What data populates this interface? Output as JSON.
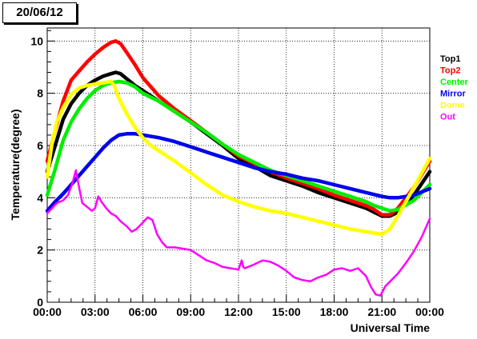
{
  "chart_data": {
    "type": "line",
    "title": "20/06/12",
    "xlabel": "Universal Time",
    "ylabel": "Temperature(degree)",
    "xlim": [
      0,
      24
    ],
    "ylim": [
      0,
      10.5
    ],
    "x_tick_values": [
      0,
      3,
      6,
      9,
      12,
      15,
      18,
      21,
      24
    ],
    "x_tick_labels": [
      "00:00",
      "03:00",
      "06:00",
      "09:00",
      "12:00",
      "15:00",
      "18:00",
      "21:00",
      "00:00"
    ],
    "y_tick_values": [
      0,
      2,
      4,
      6,
      8,
      10
    ],
    "y_tick_labels": [
      "0",
      "2",
      "4",
      "6",
      "8",
      "10"
    ],
    "grid": true,
    "legend_position": "right",
    "series": [
      {
        "name": "Top1",
        "color": "#000000",
        "points": [
          [
            0,
            5.0
          ],
          [
            0.5,
            6.0
          ],
          [
            1,
            7.0
          ],
          [
            1.5,
            7.6
          ],
          [
            2,
            8.0
          ],
          [
            2.5,
            8.3
          ],
          [
            3,
            8.5
          ],
          [
            3.5,
            8.65
          ],
          [
            4,
            8.75
          ],
          [
            4.3,
            8.8
          ],
          [
            4.6,
            8.75
          ],
          [
            5,
            8.55
          ],
          [
            5.5,
            8.3
          ],
          [
            6,
            8.1
          ],
          [
            7,
            7.7
          ],
          [
            8,
            7.3
          ],
          [
            9,
            6.9
          ],
          [
            10,
            6.45
          ],
          [
            11,
            6.0
          ],
          [
            12,
            5.5
          ],
          [
            13,
            5.2
          ],
          [
            14,
            4.85
          ],
          [
            15,
            4.65
          ],
          [
            16,
            4.45
          ],
          [
            17,
            4.2
          ],
          [
            18,
            4.0
          ],
          [
            19,
            3.8
          ],
          [
            20,
            3.6
          ],
          [
            20.5,
            3.45
          ],
          [
            21,
            3.3
          ],
          [
            21.5,
            3.3
          ],
          [
            22,
            3.45
          ],
          [
            23,
            4.1
          ],
          [
            24,
            5.0
          ]
        ]
      },
      {
        "name": "Top2",
        "color": "#ff0000",
        "points": [
          [
            0,
            5.4
          ],
          [
            0.5,
            6.6
          ],
          [
            1,
            7.7
          ],
          [
            1.5,
            8.5
          ],
          [
            2,
            8.85
          ],
          [
            2.5,
            9.2
          ],
          [
            3,
            9.5
          ],
          [
            3.5,
            9.75
          ],
          [
            4,
            9.95
          ],
          [
            4.3,
            10.0
          ],
          [
            4.6,
            9.9
          ],
          [
            5,
            9.55
          ],
          [
            5.5,
            9.1
          ],
          [
            6,
            8.6
          ],
          [
            7,
            7.9
          ],
          [
            8,
            7.4
          ],
          [
            9,
            6.95
          ],
          [
            10,
            6.5
          ],
          [
            11,
            6.05
          ],
          [
            12,
            5.6
          ],
          [
            13,
            5.3
          ],
          [
            14,
            5.0
          ],
          [
            15,
            4.75
          ],
          [
            16,
            4.55
          ],
          [
            17,
            4.35
          ],
          [
            18,
            4.1
          ],
          [
            19,
            3.9
          ],
          [
            20,
            3.7
          ],
          [
            20.5,
            3.55
          ],
          [
            21,
            3.35
          ],
          [
            21.5,
            3.35
          ],
          [
            22,
            3.6
          ],
          [
            23,
            4.4
          ],
          [
            24,
            5.4
          ]
        ]
      },
      {
        "name": "Center",
        "color": "#00ee00",
        "points": [
          [
            0,
            4.1
          ],
          [
            0.5,
            5.1
          ],
          [
            1,
            6.2
          ],
          [
            1.5,
            6.9
          ],
          [
            2,
            7.4
          ],
          [
            2.5,
            7.8
          ],
          [
            3,
            8.1
          ],
          [
            3.5,
            8.3
          ],
          [
            4,
            8.4
          ],
          [
            4.5,
            8.45
          ],
          [
            5,
            8.4
          ],
          [
            5.5,
            8.25
          ],
          [
            6,
            8.0
          ],
          [
            7,
            7.7
          ],
          [
            8,
            7.3
          ],
          [
            9,
            6.9
          ],
          [
            10,
            6.5
          ],
          [
            11,
            6.05
          ],
          [
            12,
            5.65
          ],
          [
            13,
            5.35
          ],
          [
            14,
            5.05
          ],
          [
            15,
            4.85
          ],
          [
            16,
            4.65
          ],
          [
            17,
            4.45
          ],
          [
            18,
            4.25
          ],
          [
            19,
            4.05
          ],
          [
            20,
            3.85
          ],
          [
            20.5,
            3.7
          ],
          [
            21,
            3.6
          ],
          [
            21.5,
            3.5
          ],
          [
            22,
            3.55
          ],
          [
            23,
            3.9
          ],
          [
            24,
            4.5
          ]
        ]
      },
      {
        "name": "Mirror",
        "color": "#0000ee",
        "points": [
          [
            0,
            3.5
          ],
          [
            0.5,
            3.85
          ],
          [
            1,
            4.15
          ],
          [
            1.5,
            4.5
          ],
          [
            2,
            4.85
          ],
          [
            2.5,
            5.2
          ],
          [
            3,
            5.55
          ],
          [
            3.5,
            5.9
          ],
          [
            4,
            6.2
          ],
          [
            4.5,
            6.4
          ],
          [
            5,
            6.45
          ],
          [
            5.5,
            6.45
          ],
          [
            6,
            6.4
          ],
          [
            7,
            6.3
          ],
          [
            8,
            6.15
          ],
          [
            9,
            5.95
          ],
          [
            10,
            5.75
          ],
          [
            11,
            5.55
          ],
          [
            12,
            5.35
          ],
          [
            13,
            5.15
          ],
          [
            14,
            5.0
          ],
          [
            15,
            4.9
          ],
          [
            16,
            4.75
          ],
          [
            17,
            4.65
          ],
          [
            18,
            4.5
          ],
          [
            19,
            4.35
          ],
          [
            20,
            4.2
          ],
          [
            21,
            4.05
          ],
          [
            21.5,
            4.0
          ],
          [
            22,
            4.0
          ],
          [
            23,
            4.1
          ],
          [
            24,
            4.35
          ]
        ]
      },
      {
        "name": "Dome",
        "color": "#ffff00",
        "points": [
          [
            0,
            4.8
          ],
          [
            0.3,
            6.1
          ],
          [
            0.6,
            6.9
          ],
          [
            1,
            7.45
          ],
          [
            1.5,
            7.95
          ],
          [
            2,
            8.2
          ],
          [
            2.5,
            8.3
          ],
          [
            3,
            8.35
          ],
          [
            3.5,
            8.4
          ],
          [
            4,
            8.45
          ],
          [
            4.2,
            8.3
          ],
          [
            4.5,
            7.8
          ],
          [
            5,
            7.2
          ],
          [
            5.5,
            6.7
          ],
          [
            6,
            6.3
          ],
          [
            6.5,
            6.0
          ],
          [
            7,
            5.8
          ],
          [
            8,
            5.4
          ],
          [
            9,
            4.95
          ],
          [
            10,
            4.5
          ],
          [
            11,
            4.1
          ],
          [
            12,
            3.85
          ],
          [
            13,
            3.65
          ],
          [
            14,
            3.5
          ],
          [
            15,
            3.4
          ],
          [
            16,
            3.25
          ],
          [
            17,
            3.1
          ],
          [
            18,
            2.95
          ],
          [
            19,
            2.8
          ],
          [
            20,
            2.7
          ],
          [
            20.5,
            2.65
          ],
          [
            21,
            2.6
          ],
          [
            21.5,
            2.8
          ],
          [
            22,
            3.3
          ],
          [
            23,
            4.4
          ],
          [
            24,
            5.5
          ]
        ]
      },
      {
        "name": "Out",
        "color": "#ff00ff",
        "points": [
          [
            0,
            3.4
          ],
          [
            0.3,
            3.6
          ],
          [
            0.6,
            3.8
          ],
          [
            1,
            3.9
          ],
          [
            1.3,
            4.1
          ],
          [
            1.6,
            4.6
          ],
          [
            1.8,
            5.05
          ],
          [
            2,
            4.4
          ],
          [
            2.2,
            3.8
          ],
          [
            2.5,
            3.65
          ],
          [
            2.8,
            3.5
          ],
          [
            3,
            3.6
          ],
          [
            3.2,
            4.05
          ],
          [
            3.4,
            3.85
          ],
          [
            3.7,
            3.6
          ],
          [
            4,
            3.4
          ],
          [
            4.3,
            3.3
          ],
          [
            4.6,
            3.1
          ],
          [
            5,
            2.9
          ],
          [
            5.3,
            2.7
          ],
          [
            5.6,
            2.8
          ],
          [
            6,
            3.05
          ],
          [
            6.3,
            3.25
          ],
          [
            6.6,
            3.15
          ],
          [
            6.9,
            2.6
          ],
          [
            7.2,
            2.3
          ],
          [
            7.5,
            2.1
          ],
          [
            8,
            2.1
          ],
          [
            8.5,
            2.05
          ],
          [
            9,
            2.0
          ],
          [
            9.5,
            1.8
          ],
          [
            10,
            1.6
          ],
          [
            10.5,
            1.5
          ],
          [
            11,
            1.35
          ],
          [
            11.5,
            1.3
          ],
          [
            12,
            1.25
          ],
          [
            12.2,
            1.6
          ],
          [
            12.3,
            1.35
          ],
          [
            12.4,
            1.3
          ],
          [
            12.6,
            1.35
          ],
          [
            13,
            1.45
          ],
          [
            13.5,
            1.6
          ],
          [
            14,
            1.55
          ],
          [
            14.5,
            1.4
          ],
          [
            15,
            1.2
          ],
          [
            15.5,
            0.95
          ],
          [
            16,
            0.85
          ],
          [
            16.5,
            0.8
          ],
          [
            17,
            0.95
          ],
          [
            17.5,
            1.05
          ],
          [
            18,
            1.25
          ],
          [
            18.5,
            1.3
          ],
          [
            19,
            1.2
          ],
          [
            19.5,
            1.3
          ],
          [
            20,
            1.0
          ],
          [
            20.3,
            0.6
          ],
          [
            20.6,
            0.3
          ],
          [
            20.9,
            0.25
          ],
          [
            21.2,
            0.6
          ],
          [
            21.6,
            0.85
          ],
          [
            22,
            1.1
          ],
          [
            22.5,
            1.5
          ],
          [
            23,
            1.95
          ],
          [
            23.5,
            2.5
          ],
          [
            24,
            3.2
          ]
        ]
      }
    ]
  }
}
